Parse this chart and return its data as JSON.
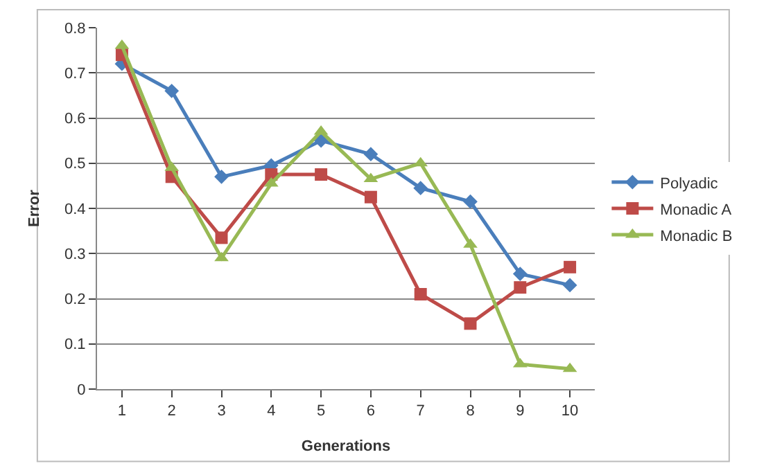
{
  "chart_data": {
    "type": "line",
    "xlabel": "Generations",
    "ylabel": "Error",
    "categories": [
      "1",
      "2",
      "3",
      "4",
      "5",
      "6",
      "7",
      "8",
      "9",
      "10"
    ],
    "series": [
      {
        "name": "Polyadic",
        "color": "#4a7ebb",
        "marker": "diamond",
        "values": [
          0.72,
          0.66,
          0.47,
          0.495,
          0.55,
          0.52,
          0.445,
          0.415,
          0.255,
          0.23
        ]
      },
      {
        "name": "Monadic A",
        "color": "#be4b48",
        "marker": "square",
        "values": [
          0.74,
          0.47,
          0.335,
          0.475,
          0.475,
          0.425,
          0.21,
          0.145,
          0.225,
          0.27
        ]
      },
      {
        "name": "Monadic B",
        "color": "#98b954",
        "marker": "triangle",
        "values": [
          0.76,
          0.49,
          0.29,
          0.455,
          0.57,
          0.465,
          0.5,
          0.32,
          0.055,
          0.045
        ]
      }
    ],
    "ylim": [
      0,
      0.8
    ],
    "yticks": [
      0,
      0.1,
      0.2,
      0.3,
      0.4,
      0.5,
      0.6,
      0.7,
      0.8
    ],
    "grid": "y",
    "legend": "right"
  }
}
